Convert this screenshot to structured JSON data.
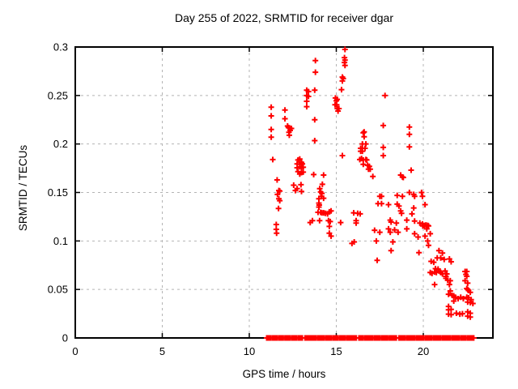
{
  "window": {
    "background": "#ffffff"
  },
  "colors": {
    "marker": "#ff0000",
    "grid": "#b4b4b4",
    "axis": "#000000",
    "text": "#000000",
    "background": "#ffffff"
  },
  "chart_data": {
    "type": "scatter",
    "title": "Day 255 of 2022, SRMTID for receiver dgar",
    "xlabel": "GPS time / hours",
    "ylabel": "SRMTID / TECUs",
    "xlim": [
      0,
      24
    ],
    "ylim": [
      0,
      0.3
    ],
    "xticks": [
      0,
      5,
      10,
      15,
      20
    ],
    "xtick_labels": [
      "0",
      "5",
      "10",
      "15",
      "20"
    ],
    "yticks": [
      0,
      0.05,
      0.1,
      0.15,
      0.2,
      0.25,
      0.3
    ],
    "ytick_labels": [
      "0",
      "0.05",
      "0.1",
      "0.15",
      "0.2",
      "0.25",
      "0.3"
    ],
    "grid": true,
    "legend": "none",
    "marker": "plus",
    "points": [
      [
        11.26,
        0.238
      ],
      [
        11.26,
        0.229
      ],
      [
        11.26,
        0.215
      ],
      [
        11.26,
        0.207
      ],
      [
        11.35,
        0.184
      ],
      [
        11.6,
        0.163
      ],
      [
        11.7,
        0.152
      ],
      [
        11.75,
        0.1515
      ],
      [
        11.62,
        0.148
      ],
      [
        11.7,
        0.1435
      ],
      [
        11.75,
        0.1415
      ],
      [
        11.68,
        0.1335
      ],
      [
        11.55,
        0.117
      ],
      [
        11.55,
        0.112
      ],
      [
        11.57,
        0.108
      ],
      [
        12.05,
        0.235
      ],
      [
        12.05,
        0.226
      ],
      [
        12.2,
        0.2185
      ],
      [
        12.25,
        0.217
      ],
      [
        12.32,
        0.2165
      ],
      [
        12.35,
        0.214
      ],
      [
        12.28,
        0.212
      ],
      [
        12.42,
        0.216
      ],
      [
        12.3,
        0.209
      ],
      [
        12.55,
        0.1575
      ],
      [
        12.65,
        0.152
      ],
      [
        12.75,
        0.154
      ],
      [
        12.97,
        0.158
      ],
      [
        13.0,
        0.151
      ],
      [
        12.8,
        0.1835
      ],
      [
        12.9,
        0.1845
      ],
      [
        13.0,
        0.181
      ],
      [
        12.75,
        0.1795
      ],
      [
        12.9,
        0.179
      ],
      [
        13.05,
        0.1795
      ],
      [
        12.75,
        0.1755
      ],
      [
        12.9,
        0.1765
      ],
      [
        13.0,
        0.1755
      ],
      [
        13.1,
        0.176
      ],
      [
        12.8,
        0.1715
      ],
      [
        12.9,
        0.169
      ],
      [
        13.0,
        0.1705
      ],
      [
        13.1,
        0.171
      ],
      [
        13.8,
        0.286
      ],
      [
        13.8,
        0.274
      ],
      [
        13.3,
        0.2555
      ],
      [
        13.76,
        0.2555
      ],
      [
        13.4,
        0.254
      ],
      [
        13.3,
        0.25
      ],
      [
        13.4,
        0.249
      ],
      [
        13.3,
        0.244
      ],
      [
        13.3,
        0.2385
      ],
      [
        13.76,
        0.225
      ],
      [
        13.76,
        0.2035
      ],
      [
        13.7,
        0.1685
      ],
      [
        14.27,
        0.168
      ],
      [
        14.2,
        0.1585
      ],
      [
        14.1,
        0.1505
      ],
      [
        14.17,
        0.149
      ],
      [
        14.05,
        0.154
      ],
      [
        14.13,
        0.146
      ],
      [
        14.27,
        0.144
      ],
      [
        14.0,
        0.1435
      ],
      [
        14.0,
        0.139
      ],
      [
        14.02,
        0.137
      ],
      [
        14.0,
        0.135
      ],
      [
        14.1,
        0.1295
      ],
      [
        14.18,
        0.129
      ],
      [
        14.28,
        0.129
      ],
      [
        14.38,
        0.1285
      ],
      [
        13.5,
        0.119
      ],
      [
        13.63,
        0.121
      ],
      [
        14.04,
        0.121
      ],
      [
        13.95,
        0.1295
      ],
      [
        14.5,
        0.128
      ],
      [
        14.6,
        0.13
      ],
      [
        14.7,
        0.131
      ],
      [
        14.55,
        0.121
      ],
      [
        14.65,
        0.12
      ],
      [
        14.6,
        0.115
      ],
      [
        14.6,
        0.108
      ],
      [
        14.7,
        0.105
      ],
      [
        15.25,
        0.119
      ],
      [
        15.9,
        0.0975
      ],
      [
        16.03,
        0.099
      ],
      [
        14.95,
        0.2475
      ],
      [
        15.05,
        0.246
      ],
      [
        14.93,
        0.2405
      ],
      [
        15.02,
        0.2405
      ],
      [
        15.0,
        0.2445
      ],
      [
        15.06,
        0.2365
      ],
      [
        15.15,
        0.2365
      ],
      [
        15.1,
        0.234
      ],
      [
        15.5,
        0.2975
      ],
      [
        15.47,
        0.289
      ],
      [
        15.5,
        0.2865
      ],
      [
        15.47,
        0.284
      ],
      [
        15.5,
        0.281
      ],
      [
        15.35,
        0.269
      ],
      [
        15.4,
        0.2675
      ],
      [
        15.35,
        0.265
      ],
      [
        15.3,
        0.256
      ],
      [
        15.35,
        0.188
      ],
      [
        16.0,
        0.129
      ],
      [
        16.23,
        0.1285
      ],
      [
        16.37,
        0.128
      ],
      [
        16.14,
        0.121
      ],
      [
        16.14,
        0.1185
      ],
      [
        16.6,
        0.2125
      ],
      [
        16.6,
        0.2075
      ],
      [
        16.55,
        0.2115
      ],
      [
        16.5,
        0.2
      ],
      [
        16.7,
        0.2
      ],
      [
        16.4,
        0.1955
      ],
      [
        16.5,
        0.1955
      ],
      [
        16.65,
        0.1955
      ],
      [
        16.4,
        0.1925
      ],
      [
        16.5,
        0.1925
      ],
      [
        16.45,
        0.185
      ],
      [
        16.7,
        0.184
      ],
      [
        16.35,
        0.184
      ],
      [
        16.55,
        0.1835
      ],
      [
        16.75,
        0.1835
      ],
      [
        16.55,
        0.179
      ],
      [
        16.8,
        0.178
      ],
      [
        16.9,
        0.177
      ],
      [
        16.85,
        0.174
      ],
      [
        16.95,
        0.174
      ],
      [
        17.1,
        0.1665
      ],
      [
        17.8,
        0.25
      ],
      [
        17.7,
        0.219
      ],
      [
        17.7,
        0.1965
      ],
      [
        17.7,
        0.188
      ],
      [
        17.5,
        0.146
      ],
      [
        17.6,
        0.146
      ],
      [
        17.4,
        0.1385
      ],
      [
        17.6,
        0.1385
      ],
      [
        17.2,
        0.111
      ],
      [
        17.5,
        0.109
      ],
      [
        17.3,
        0.1
      ],
      [
        17.35,
        0.08
      ],
      [
        18.0,
        0.1375
      ],
      [
        18.5,
        0.138
      ],
      [
        18.6,
        0.136
      ],
      [
        18.7,
        0.168
      ],
      [
        18.8,
        0.166
      ],
      [
        18.85,
        0.1655
      ],
      [
        18.5,
        0.147
      ],
      [
        18.8,
        0.146
      ],
      [
        18.7,
        0.131
      ],
      [
        18.75,
        0.1285
      ],
      [
        18.1,
        0.1215
      ],
      [
        18.15,
        0.1195
      ],
      [
        18.45,
        0.1185
      ],
      [
        18.0,
        0.1125
      ],
      [
        18.1,
        0.109
      ],
      [
        18.35,
        0.1115
      ],
      [
        18.55,
        0.109
      ],
      [
        18.25,
        0.099
      ],
      [
        18.15,
        0.09
      ],
      [
        19.45,
        0.134
      ],
      [
        19.35,
        0.128
      ],
      [
        19.2,
        0.2175
      ],
      [
        19.2,
        0.21
      ],
      [
        19.2,
        0.197
      ],
      [
        19.3,
        0.173
      ],
      [
        19.2,
        0.15
      ],
      [
        19.45,
        0.148
      ],
      [
        19.5,
        0.146
      ],
      [
        19.05,
        0.1215
      ],
      [
        19.5,
        0.1205
      ],
      [
        19.05,
        0.1125
      ],
      [
        19.5,
        0.1075
      ],
      [
        19.7,
        0.104
      ],
      [
        19.8,
        0.1185
      ],
      [
        19.95,
        0.1175
      ],
      [
        19.9,
        0.15
      ],
      [
        19.95,
        0.146
      ],
      [
        20.1,
        0.1375
      ],
      [
        19.97,
        0.1155
      ],
      [
        20.05,
        0.116
      ],
      [
        20.15,
        0.1165
      ],
      [
        20.25,
        0.116
      ],
      [
        20.3,
        0.1155
      ],
      [
        20.2,
        0.1125
      ],
      [
        20.4,
        0.1075
      ],
      [
        20.1,
        0.105
      ],
      [
        20.25,
        0.1
      ],
      [
        20.3,
        0.0955
      ],
      [
        20.45,
        0.079
      ],
      [
        20.6,
        0.078
      ],
      [
        19.75,
        0.088
      ],
      [
        20.9,
        0.09
      ],
      [
        21.1,
        0.0875
      ],
      [
        20.8,
        0.0825
      ],
      [
        21.0,
        0.0825
      ],
      [
        21.2,
        0.081
      ],
      [
        20.7,
        0.0715
      ],
      [
        20.85,
        0.071
      ],
      [
        20.4,
        0.0675
      ],
      [
        20.5,
        0.0665
      ],
      [
        20.65,
        0.068
      ],
      [
        20.75,
        0.0675
      ],
      [
        20.9,
        0.069
      ],
      [
        21.0,
        0.0675
      ],
      [
        21.1,
        0.066
      ],
      [
        21.25,
        0.069
      ],
      [
        21.35,
        0.066
      ],
      [
        21.3,
        0.0635
      ],
      [
        21.3,
        0.0615
      ],
      [
        21.4,
        0.0595
      ],
      [
        21.55,
        0.059
      ],
      [
        20.65,
        0.055
      ],
      [
        21.5,
        0.0815
      ],
      [
        21.6,
        0.0785
      ],
      [
        22.4,
        0.0685
      ],
      [
        22.5,
        0.0685
      ],
      [
        22.45,
        0.0655
      ],
      [
        22.5,
        0.0635
      ],
      [
        22.4,
        0.059
      ],
      [
        22.55,
        0.0565
      ],
      [
        22.5,
        0.051
      ],
      [
        22.55,
        0.05
      ],
      [
        21.55,
        0.0485
      ],
      [
        22.6,
        0.049
      ],
      [
        22.7,
        0.047
      ],
      [
        21.45,
        0.045
      ],
      [
        21.65,
        0.044
      ],
      [
        21.75,
        0.0435
      ],
      [
        21.85,
        0.042
      ],
      [
        22.0,
        0.0405
      ],
      [
        21.75,
        0.038
      ],
      [
        22.15,
        0.042
      ],
      [
        22.3,
        0.0405
      ],
      [
        22.5,
        0.042
      ],
      [
        22.6,
        0.0415
      ],
      [
        22.75,
        0.0395
      ],
      [
        22.55,
        0.037
      ],
      [
        22.7,
        0.0365
      ],
      [
        22.85,
        0.0355
      ],
      [
        21.45,
        0.0325
      ],
      [
        21.6,
        0.0295
      ],
      [
        21.45,
        0.029
      ],
      [
        21.45,
        0.0245
      ],
      [
        21.6,
        0.024
      ],
      [
        21.9,
        0.0255
      ],
      [
        22.1,
        0.0245
      ],
      [
        22.25,
        0.025
      ],
      [
        22.55,
        0.027
      ],
      [
        22.7,
        0.0255
      ],
      [
        22.55,
        0.0225
      ],
      [
        22.7,
        0.0215
      ],
      [
        21.5,
        0.055
      ]
    ],
    "baseline_row": {
      "y": 0,
      "start": 11.0,
      "end": 22.9,
      "step": 0.05,
      "gaps": [
        [
          11.28,
          11.33
        ],
        [
          11.62,
          11.67
        ],
        [
          12.0,
          12.05
        ],
        [
          12.36,
          12.42
        ],
        [
          12.72,
          12.78
        ],
        [
          13.1,
          13.16
        ],
        [
          13.26,
          13.3
        ],
        [
          13.9,
          13.95
        ],
        [
          14.32,
          14.38
        ],
        [
          14.72,
          14.78
        ],
        [
          15.12,
          15.16
        ],
        [
          15.55,
          15.6
        ],
        [
          16.2,
          16.26
        ],
        [
          16.6,
          16.65
        ],
        [
          17.12,
          17.18
        ],
        [
          17.55,
          17.6
        ],
        [
          18.0,
          18.05
        ],
        [
          18.5,
          18.56
        ],
        [
          19.0,
          19.05
        ],
        [
          19.55,
          19.6
        ],
        [
          20.05,
          20.1
        ],
        [
          20.55,
          20.6
        ],
        [
          21.05,
          21.1
        ],
        [
          21.6,
          21.65
        ],
        [
          22.1,
          22.15
        ],
        [
          22.5,
          22.55
        ]
      ]
    }
  }
}
